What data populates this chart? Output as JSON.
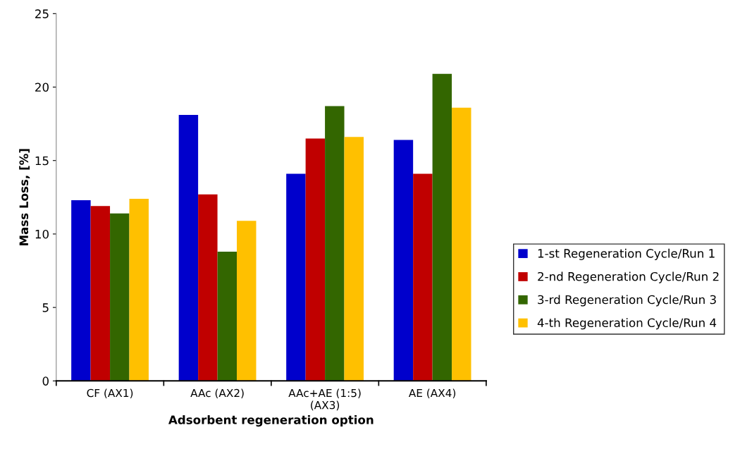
{
  "chart_data": {
    "type": "bar",
    "xlabel": "Adsorbent regeneration option",
    "ylabel": "Mass Loss, [%]",
    "categories": [
      "CF (AX1)",
      "AAc (AX2)",
      "AAc+AE (1:5)\n(AX3)",
      "AE (AX4)"
    ],
    "series": [
      {
        "name": "1-st Regeneration Cycle/Run 1",
        "color": "#0000cc",
        "values": [
          12.3,
          18.1,
          14.1,
          16.4
        ]
      },
      {
        "name": "2-nd Regeneration Cycle/Run 2",
        "color": "#c00000",
        "values": [
          11.9,
          12.7,
          16.5,
          14.1
        ]
      },
      {
        "name": "3-rd Regeneration Cycle/Run 3",
        "color": "#336600",
        "values": [
          11.4,
          8.8,
          18.7,
          20.9
        ]
      },
      {
        "name": "4-th Regeneration Cycle/Run 4",
        "color": "#ffc000",
        "values": [
          12.4,
          10.9,
          16.6,
          18.6
        ]
      }
    ],
    "ylim": [
      0,
      25
    ],
    "yticks": [
      0,
      5,
      10,
      15,
      20,
      25
    ],
    "grid": false,
    "legend": "right"
  }
}
